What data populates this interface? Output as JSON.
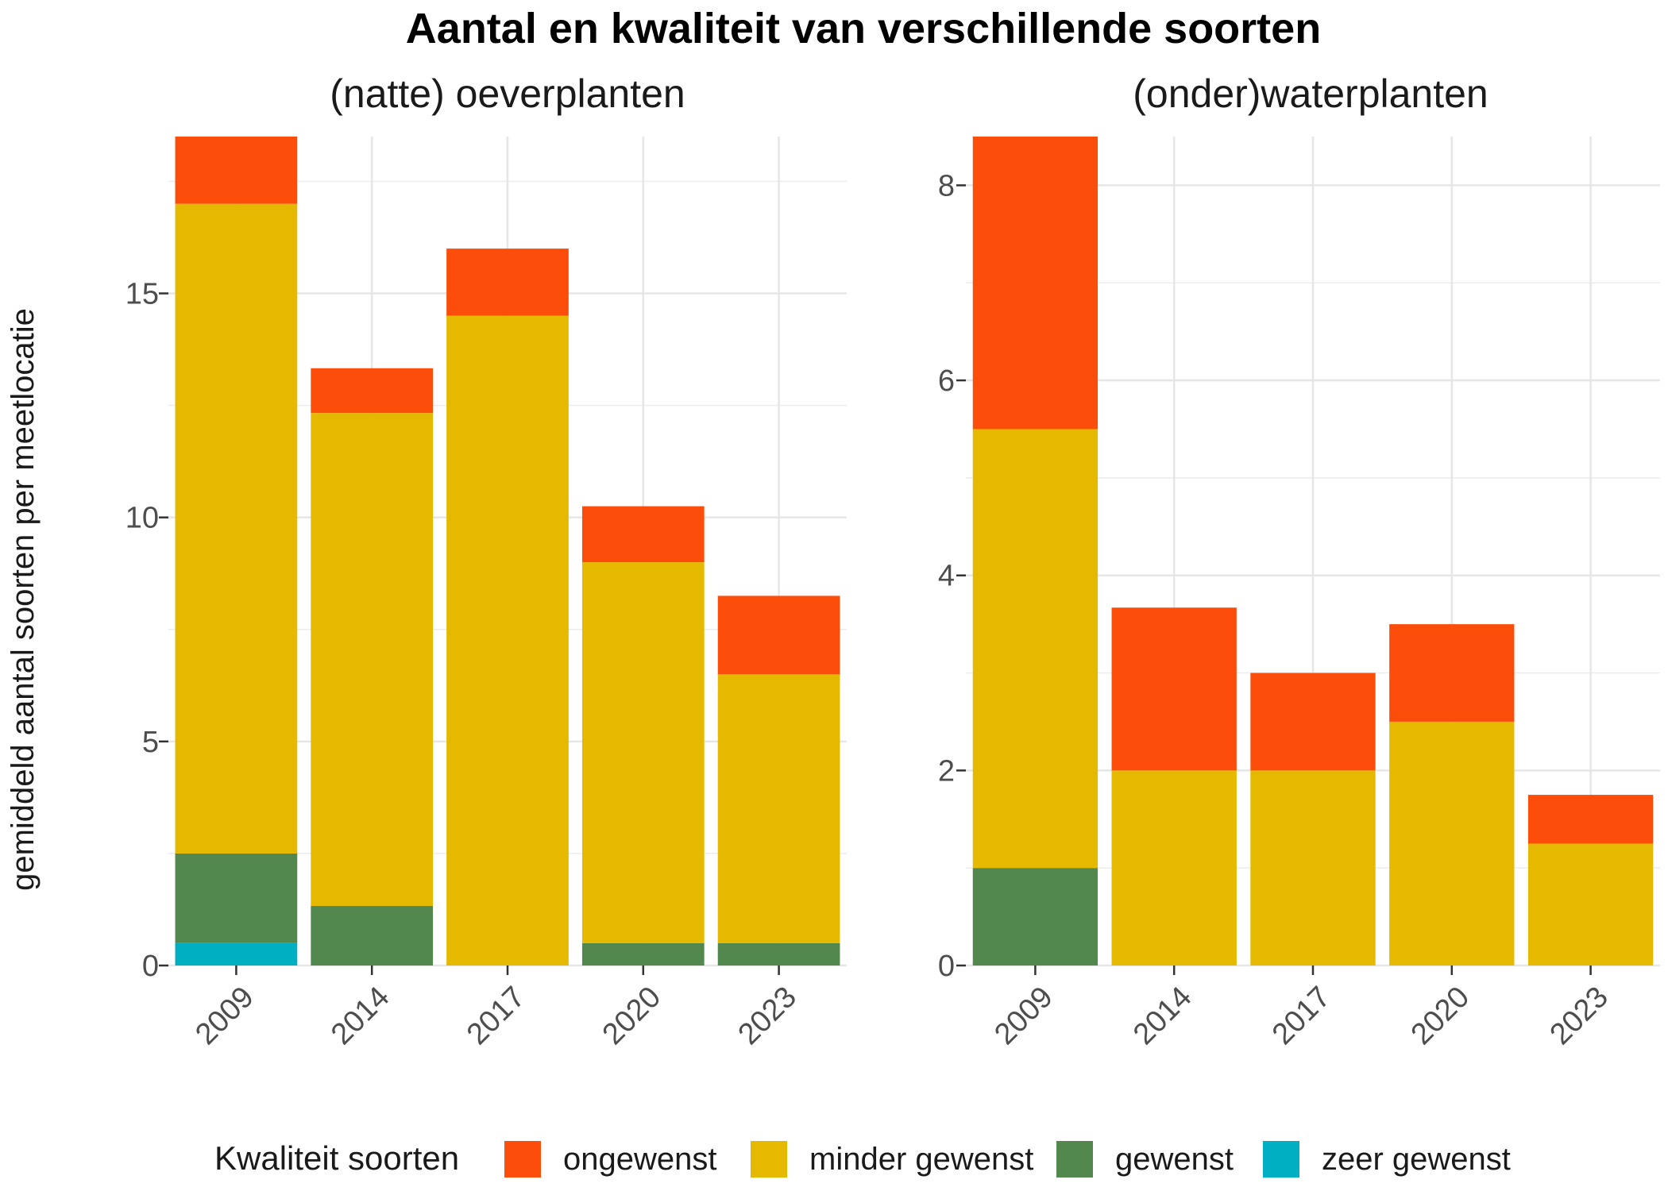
{
  "chart_data": {
    "title": "Aantal en kwaliteit van verschillende soorten",
    "ylabel": "gemiddeld aantal soorten per meetlocatie",
    "legend": {
      "title": "Kwaliteit soorten",
      "position": "bottom",
      "entries": [
        "ongewenst",
        "minder gewenst",
        "gewenst",
        "zeer gewenst"
      ]
    },
    "colors": {
      "ongewenst": "#FC4E0A",
      "minder gewenst": "#E5B900",
      "gewenst": "#52884E",
      "zeer gewenst": "#00B0C2"
    },
    "grid": true,
    "panels": [
      {
        "type": "bar",
        "stacked": true,
        "subtitle": "(natte) oeverplanten",
        "categories": [
          "2009",
          "2014",
          "2017",
          "2020",
          "2023"
        ],
        "ylim": [
          0,
          18.5
        ],
        "yticks": [
          0,
          5,
          10,
          15
        ],
        "ytick_labels": [
          "0",
          "5",
          "10",
          "15"
        ],
        "series": [
          {
            "name": "zeer gewenst",
            "values": [
              0.5,
              0,
              0,
              0,
              0
            ]
          },
          {
            "name": "gewenst",
            "values": [
              2.0,
              1.33,
              0,
              0.5,
              0.5
            ]
          },
          {
            "name": "minder gewenst",
            "values": [
              14.5,
              11.0,
              14.5,
              8.5,
              6.0
            ]
          },
          {
            "name": "ongewenst",
            "values": [
              1.5,
              1.0,
              1.5,
              1.25,
              1.75
            ]
          }
        ]
      },
      {
        "type": "bar",
        "stacked": true,
        "subtitle": "(onder)waterplanten",
        "categories": [
          "2009",
          "2014",
          "2017",
          "2020",
          "2023"
        ],
        "ylim": [
          0,
          8.5
        ],
        "yticks": [
          0,
          2,
          4,
          6,
          8
        ],
        "ytick_labels": [
          "0",
          "2",
          "4",
          "6",
          "8"
        ],
        "series": [
          {
            "name": "zeer gewenst",
            "values": [
              0,
              0,
              0,
              0,
              0
            ]
          },
          {
            "name": "gewenst",
            "values": [
              1.0,
              0,
              0,
              0,
              0
            ]
          },
          {
            "name": "minder gewenst",
            "values": [
              4.5,
              2.0,
              2.0,
              2.5,
              1.25
            ]
          },
          {
            "name": "ongewenst",
            "values": [
              3.0,
              1.67,
              1.0,
              1.0,
              0.5
            ]
          }
        ]
      }
    ]
  }
}
